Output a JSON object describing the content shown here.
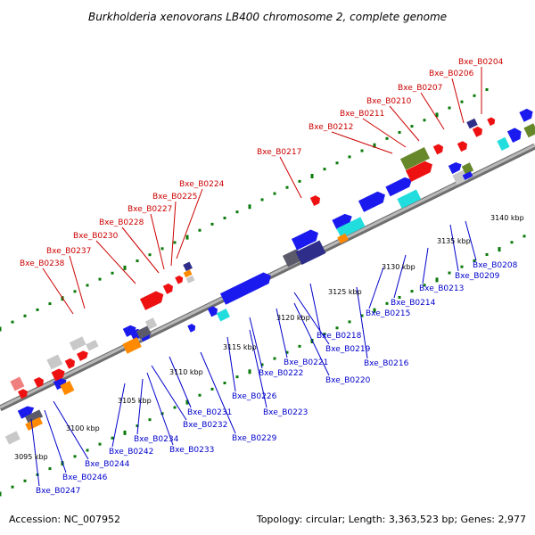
{
  "title": "Burkholderia xenovorans LB400 chromosome 2, complete genome",
  "footer": {
    "accession": "Accession: NC_007952",
    "summary": "Topology: circular; Length: 3,363,523 bp; Genes: 2,977"
  },
  "colors": {
    "backbone": "#8c8c8c",
    "tick": "#0a7a0a",
    "label_forward": "#cc0000",
    "label_reverse": "#0000cc",
    "gene_blue": "#1a1aee",
    "gene_navy": "#2e2e8a",
    "gene_red": "#ee1111",
    "gene_cyan": "#22dddd",
    "gene_orange": "#ff8a00",
    "gene_green": "#66882a",
    "gene_gray": "#c8c8c8",
    "gene_pink": "#f08080",
    "gene_slate": "#5a5a6a"
  },
  "kbp_markers": [
    "3095 kbp",
    "3100 kbp",
    "3105 kbp",
    "3110 kbp",
    "3115 kbp",
    "3120 kbp",
    "3125 kbp",
    "3130 kbp",
    "3135 kbp",
    "3140 kbp"
  ],
  "top_labels": [
    "Bxe_B0204",
    "Bxe_B0206",
    "Bxe_B0207",
    "Bxe_B0210",
    "Bxe_B0211",
    "Bxe_B0212",
    "Bxe_B0217",
    "Bxe_B0224",
    "Bxe_B0225",
    "Bxe_B0227",
    "Bxe_B0228",
    "Bxe_B0230",
    "Bxe_B0237",
    "Bxe_B0238"
  ],
  "bottom_labels": [
    "Bxe_B0208",
    "Bxe_B0209",
    "Bxe_B0213",
    "Bxe_B0214",
    "Bxe_B0215",
    "Bxe_B0216",
    "Bxe_B0218",
    "Bxe_B0219",
    "Bxe_B0220",
    "Bxe_B0221",
    "Bxe_B0222",
    "Bxe_B0223",
    "Bxe_B0226",
    "Bxe_B0229",
    "Bxe_B0231",
    "Bxe_B0232",
    "Bxe_B0233",
    "Bxe_B0234",
    "Bxe_B0242",
    "Bxe_B0244",
    "Bxe_B0246",
    "Bxe_B0247"
  ]
}
